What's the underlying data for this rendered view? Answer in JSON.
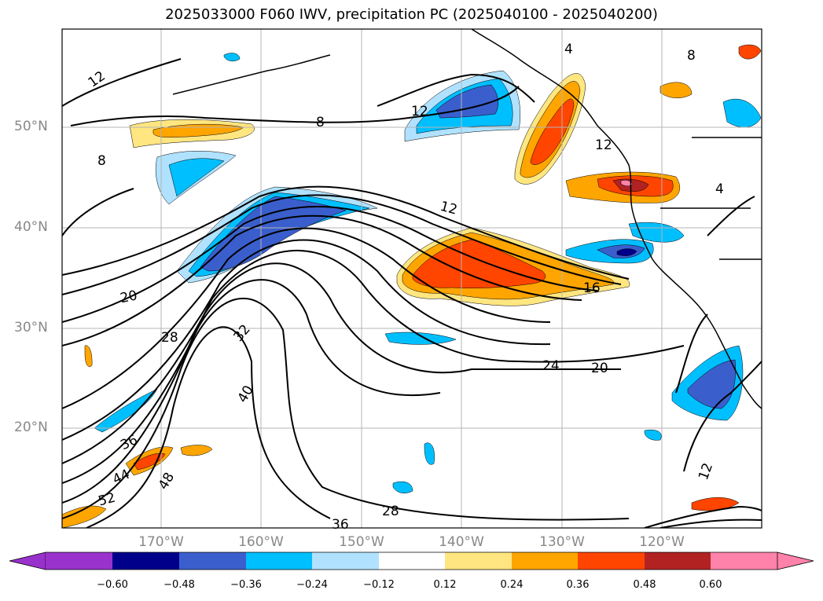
{
  "title": "2025033000 F060 IWV, precipitation PC (2025040100 - 2025040200)",
  "lat_labels": [
    "50°N",
    "40°N",
    "30°N",
    "20°N"
  ],
  "lon_labels": [
    "170°W",
    "160°W",
    "150°W",
    "140°W",
    "130°W",
    "120°W"
  ],
  "contour_labels": [
    "12",
    "8",
    "12",
    "12",
    "12",
    "16",
    "20",
    "28",
    "32",
    "40",
    "36",
    "44",
    "48",
    "52",
    "24",
    "20",
    "28",
    "36",
    "12",
    "4",
    "8",
    "8",
    "4"
  ],
  "colorbar": {
    "ticks": [
      "−0.60",
      "−0.48",
      "−0.36",
      "−0.24",
      "−0.12",
      "0.12",
      "0.24",
      "0.36",
      "0.48",
      "0.60"
    ],
    "colors": {
      "under": "#9932cc",
      "b1": "#00008b",
      "b2": "#3a5fcd",
      "b3": "#00bfff",
      "b4": "#b0e2ff",
      "mid": "#ffffff",
      "r1": "#ffe680",
      "r2": "#ffa500",
      "r3": "#ff4500",
      "r4": "#b22222",
      "over": "#ff82ab"
    }
  }
}
